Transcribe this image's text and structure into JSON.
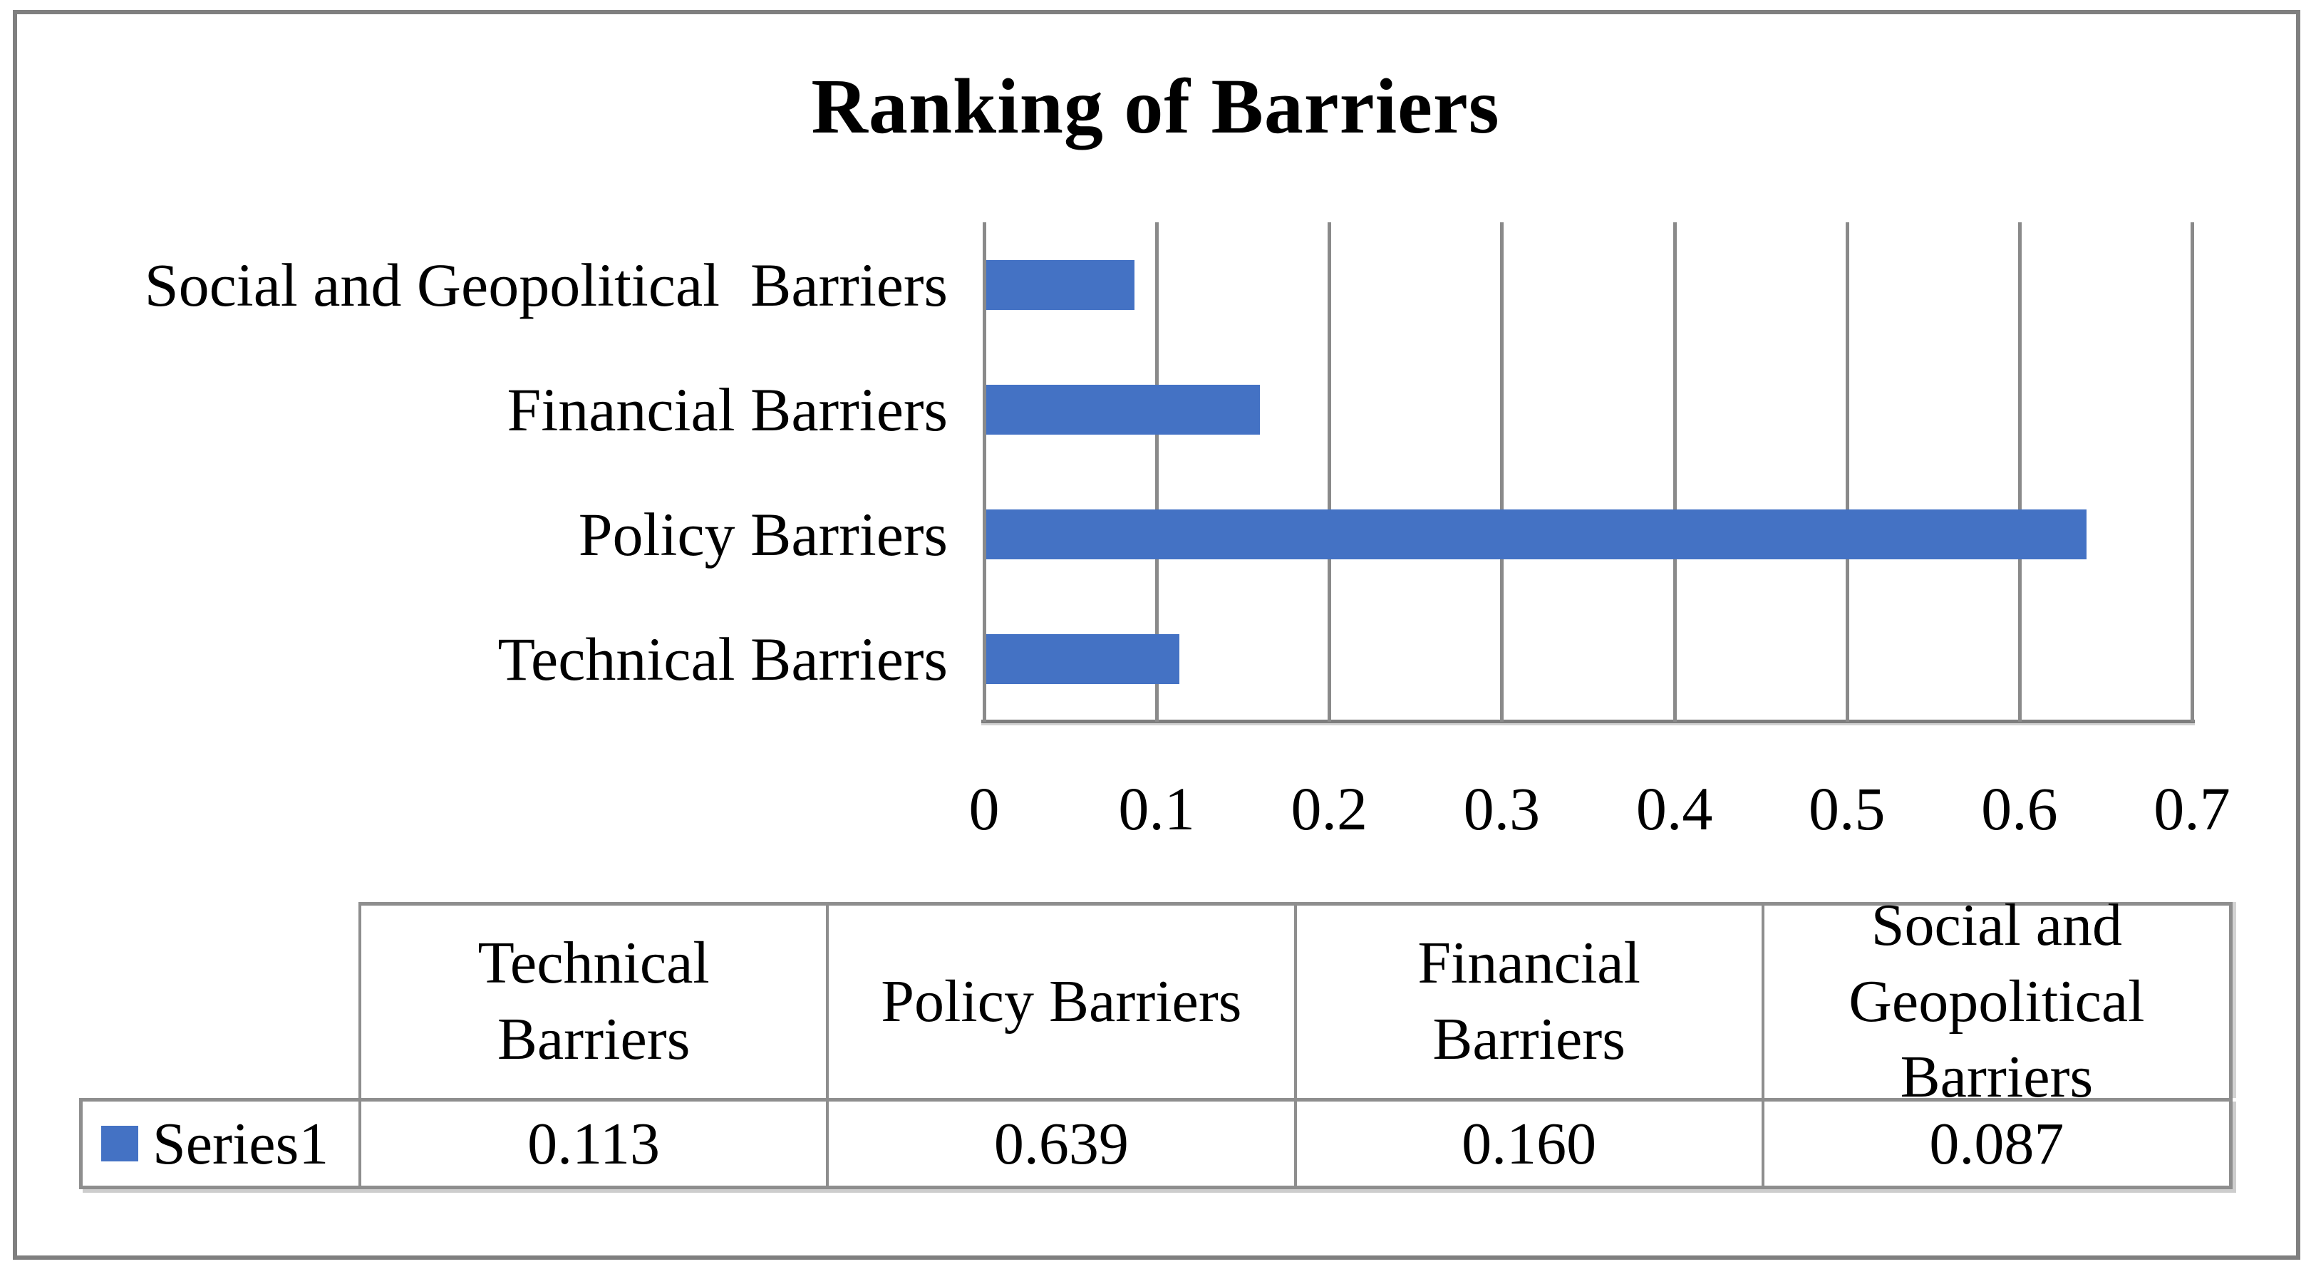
{
  "chart_data": {
    "type": "bar",
    "orientation": "horizontal",
    "title": "Ranking of Barriers",
    "categories": [
      "Technical Barriers",
      "Policy Barriers",
      "Financial Barriers",
      "Social and Geopolitical Barriers"
    ],
    "axis_labels": [
      "Technical Barriers",
      "Policy Barriers",
      "Financial Barriers",
      "Social and Geopolitical  Barriers"
    ],
    "series": [
      {
        "name": "Series1",
        "values": [
          0.113,
          0.639,
          0.16,
          0.087
        ]
      }
    ],
    "xlim": [
      0,
      0.7
    ],
    "x_ticks": [
      "0",
      "0.1",
      "0.2",
      "0.3",
      "0.4",
      "0.5",
      "0.6",
      "0.7"
    ],
    "grid": "vertical-gridlines-on",
    "legend_position": "data-table-left",
    "bar_color": "#4472C4",
    "gridline_color": "#8A8A8A",
    "axis_line_color": "#7D7D7D",
    "frame_border_color": "#7F7F7F",
    "table_border_color": "#8E8E8E"
  },
  "data_table": {
    "legend": {
      "label": "Series1",
      "swatch_color": "#4472C4"
    },
    "columns": [
      {
        "header": "Technical Barriers",
        "value": "0.113"
      },
      {
        "header": "Policy Barriers",
        "value": "0.639"
      },
      {
        "header": "Financial Barriers",
        "value": "0.160"
      },
      {
        "header": "Social and Geopolitical Barriers",
        "value": "0.087"
      }
    ]
  }
}
